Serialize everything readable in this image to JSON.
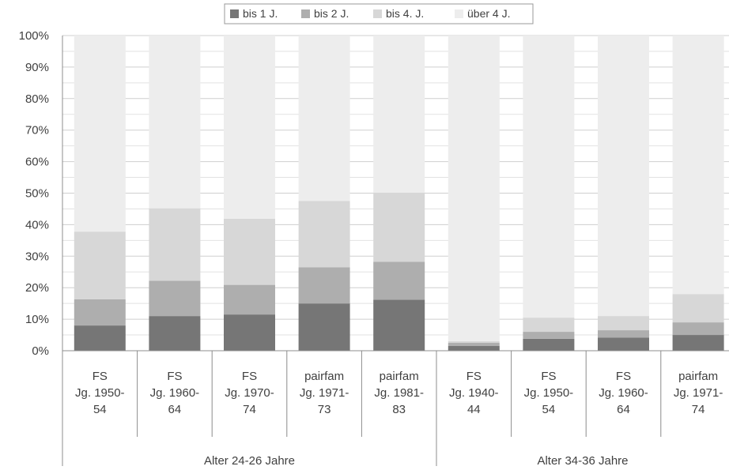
{
  "chart_data": {
    "type": "bar",
    "stacked": true,
    "percent": true,
    "ylim": [
      0,
      100
    ],
    "yticks": [
      "0%",
      "10%",
      "20%",
      "30%",
      "40%",
      "50%",
      "60%",
      "70%",
      "80%",
      "90%",
      "100%"
    ],
    "grid": true,
    "legend_position": "top",
    "groups": [
      {
        "label": "Alter 24-26 Jahre",
        "count": 5
      },
      {
        "label": "Alter 34-36 Jahre",
        "count": 4
      }
    ],
    "categories": [
      [
        "FS",
        "Jg. 1950-",
        "54"
      ],
      [
        "FS",
        "Jg. 1960-",
        "64"
      ],
      [
        "FS",
        "Jg. 1970-",
        "74"
      ],
      [
        "pairfam",
        "Jg. 1971-",
        "73"
      ],
      [
        "pairfam",
        "Jg. 1981-",
        "83"
      ],
      [
        "FS",
        "Jg. 1940-",
        "44"
      ],
      [
        "FS",
        "Jg. 1950-",
        "54"
      ],
      [
        "FS",
        "Jg. 1960-",
        "64"
      ],
      [
        "pairfam",
        "Jg. 1971-",
        "74"
      ]
    ],
    "series": [
      {
        "name": "bis 1 J.",
        "color": "#767676",
        "values": [
          8,
          11,
          11.5,
          15,
          16.2,
          1.5,
          3.8,
          4.2,
          5
        ]
      },
      {
        "name": "bis 2 J.",
        "color": "#aeaeae",
        "values": [
          8.3,
          11.2,
          9.4,
          11.5,
          12,
          1,
          2.2,
          2.3,
          4
        ]
      },
      {
        "name": "bis 4. J.",
        "color": "#d7d7d7",
        "values": [
          21.5,
          23,
          21,
          21,
          22,
          0.5,
          4.5,
          4.5,
          9
        ]
      },
      {
        "name": "über 4 J.",
        "color": "#ededed",
        "values": [
          62.2,
          54.8,
          58.1,
          52.5,
          49.8,
          97,
          89.5,
          89,
          82
        ]
      }
    ]
  }
}
